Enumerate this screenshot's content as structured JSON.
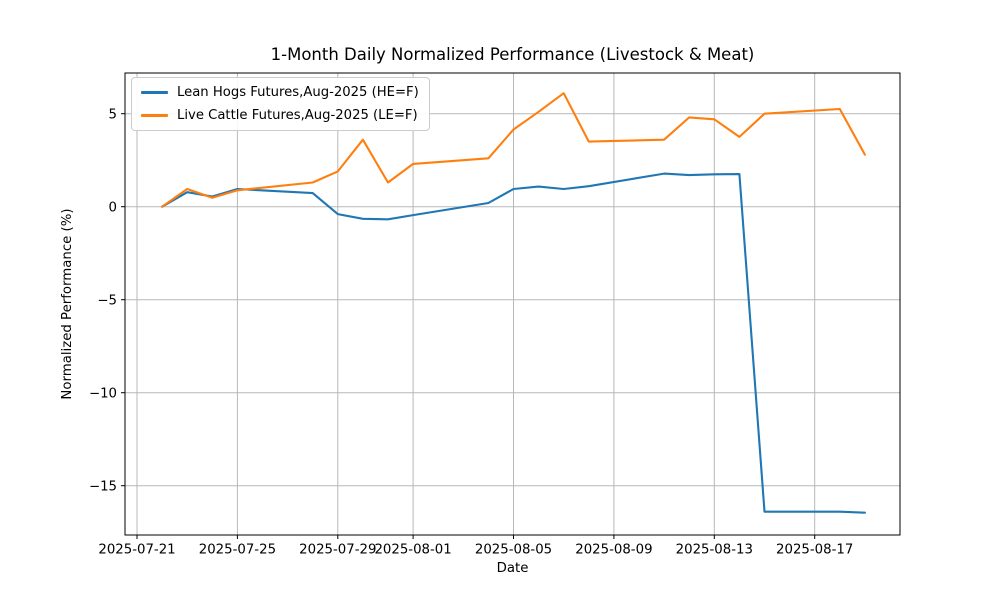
{
  "chart_data": {
    "type": "line",
    "title": "1-Month Daily Normalized Performance (Livestock & Meat)",
    "xlabel": "Date",
    "ylabel": "Normalized Performance (%)",
    "x": [
      "2025-07-22",
      "2025-07-23",
      "2025-07-24",
      "2025-07-25",
      "2025-07-28",
      "2025-07-29",
      "2025-07-30",
      "2025-07-31",
      "2025-08-01",
      "2025-08-04",
      "2025-08-05",
      "2025-08-06",
      "2025-08-07",
      "2025-08-08",
      "2025-08-11",
      "2025-08-12",
      "2025-08-13",
      "2025-08-14",
      "2025-08-15",
      "2025-08-18",
      "2025-08-19"
    ],
    "series": [
      {
        "name": "Lean Hogs Futures,Aug-2025 (HE=F)",
        "color": "#1f77b4",
        "values": [
          0.0,
          0.78,
          0.55,
          0.95,
          0.73,
          -0.4,
          -0.65,
          -0.68,
          -0.45,
          0.2,
          0.95,
          1.08,
          0.95,
          1.1,
          1.78,
          1.7,
          1.74,
          1.75,
          -16.4,
          -16.4,
          -16.45
        ]
      },
      {
        "name": "Live Cattle Futures,Aug-2025 (LE=F)",
        "color": "#ff7f0e",
        "values": [
          0.0,
          0.95,
          0.48,
          0.88,
          1.3,
          1.9,
          3.6,
          1.3,
          2.3,
          2.6,
          4.15,
          5.1,
          6.1,
          3.5,
          3.6,
          4.8,
          4.7,
          3.75,
          5.0,
          5.25,
          2.8
        ]
      }
    ],
    "xticks": [
      "2025-07-21",
      "2025-07-25",
      "2025-07-29",
      "2025-08-01",
      "2025-08-05",
      "2025-08-09",
      "2025-08-13",
      "2025-08-17"
    ],
    "yticks": [
      5,
      0,
      -5,
      -10,
      -15
    ],
    "ylim": [
      -17.65,
      7.2
    ],
    "grid": true,
    "legend_position": "upper left",
    "grid_color": "#b8b8b8",
    "spine_color": "#000000"
  }
}
